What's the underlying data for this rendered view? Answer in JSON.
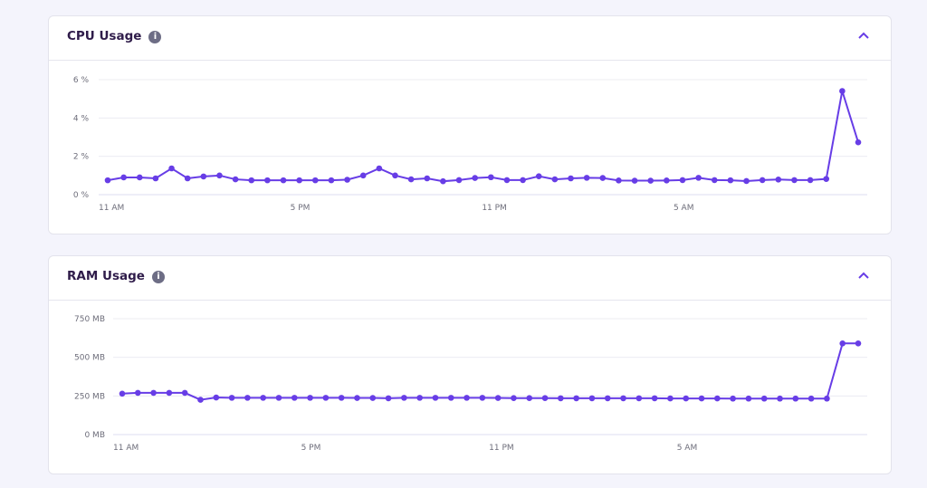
{
  "cards": [
    {
      "title": "CPU Usage",
      "info_icon": "info-icon",
      "collapse_icon": "chevron-up-icon",
      "accent": "#673de6",
      "chart_data": {
        "type": "line",
        "title": "CPU Usage",
        "yticks": [
          "0 %",
          "2 %",
          "4 %",
          "6 %"
        ],
        "ylim": [
          0,
          6
        ],
        "xticks": [
          {
            "label": "11 AM",
            "index": 0
          },
          {
            "label": "5 PM",
            "index": 12
          },
          {
            "label": "11 PM",
            "index": 24
          },
          {
            "label": "5 AM",
            "index": 36
          }
        ],
        "x_interval": "30 min",
        "grid": true,
        "values": [
          0.75,
          0.9,
          0.9,
          0.85,
          1.37,
          0.85,
          0.95,
          1.0,
          0.8,
          0.75,
          0.75,
          0.75,
          0.75,
          0.75,
          0.75,
          0.78,
          1.0,
          1.37,
          1.0,
          0.8,
          0.85,
          0.7,
          0.76,
          0.87,
          0.91,
          0.76,
          0.76,
          0.96,
          0.8,
          0.85,
          0.88,
          0.87,
          0.74,
          0.73,
          0.73,
          0.74,
          0.76,
          0.88,
          0.76,
          0.75,
          0.71,
          0.76,
          0.79,
          0.76,
          0.76,
          0.82,
          5.41,
          2.73
        ]
      }
    },
    {
      "title": "RAM Usage",
      "info_icon": "info-icon",
      "collapse_icon": "chevron-up-icon",
      "accent": "#673de6",
      "chart_data": {
        "type": "line",
        "title": "RAM Usage",
        "yticks": [
          "0 MB",
          "250 MB",
          "500 MB",
          "750 MB"
        ],
        "ylim": [
          0,
          750
        ],
        "xticks": [
          {
            "label": "11 AM",
            "index": 0
          },
          {
            "label": "5 PM",
            "index": 12
          },
          {
            "label": "11 PM",
            "index": 24
          },
          {
            "label": "5 AM",
            "index": 36
          }
        ],
        "x_interval": "30 min",
        "grid": true,
        "values": [
          265,
          270,
          270,
          270,
          270,
          225,
          240,
          238,
          238,
          238,
          238,
          238,
          238,
          238,
          238,
          237,
          237,
          235,
          238,
          238,
          238,
          238,
          238,
          238,
          237,
          236,
          236,
          236,
          235,
          235,
          235,
          235,
          235,
          235,
          235,
          234,
          234,
          234,
          234,
          233,
          233,
          233,
          233,
          233,
          233,
          233,
          590,
          590
        ]
      }
    }
  ]
}
